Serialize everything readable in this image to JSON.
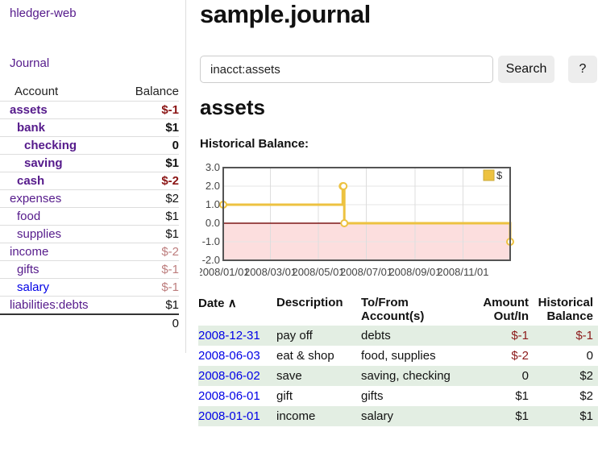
{
  "app": {
    "brand": "hledger-web"
  },
  "colors": {
    "accent_purple": "#551a8b",
    "link_blue": "#0000e6",
    "negative_strong": "#8b1515",
    "negative_soft": "#bd7d7d",
    "negative_table": "#8b1a1a",
    "row_green": "#e3eee3",
    "chart_gold": "#edc240",
    "chart_negative_fill": "#fcdede",
    "chart_zero_line": "#7d1616",
    "button_bg": "#ededed"
  },
  "sidebar": {
    "nav_journal": "Journal",
    "headers": {
      "account": "Account",
      "balance": "Balance"
    },
    "accounts": [
      {
        "label": "assets",
        "indent": 0,
        "bold": true,
        "balance": "$-1"
      },
      {
        "label": "bank",
        "indent": 1,
        "bold": true,
        "balance": "$1"
      },
      {
        "label": "checking",
        "indent": 2,
        "bold": true,
        "balance": "0"
      },
      {
        "label": "saving",
        "indent": 2,
        "bold": true,
        "balance": "$1"
      },
      {
        "label": "cash",
        "indent": 1,
        "bold": true,
        "balance": "$-2"
      },
      {
        "label": "expenses",
        "indent": 0,
        "bold": false,
        "balance": "$2"
      },
      {
        "label": "food",
        "indent": 1,
        "bold": false,
        "balance": "$1"
      },
      {
        "label": "supplies",
        "indent": 1,
        "bold": false,
        "balance": "$1"
      },
      {
        "label": "income",
        "indent": 0,
        "bold": false,
        "balance": "$-2"
      },
      {
        "label": "gifts",
        "indent": 1,
        "bold": false,
        "balance": "$-1"
      },
      {
        "label": "salary",
        "indent": 1,
        "bold": false,
        "balance": "$-1",
        "link": "blue"
      },
      {
        "label": "liabilities:debts",
        "indent": 0,
        "bold": false,
        "balance": "$1"
      }
    ],
    "total": "0"
  },
  "main": {
    "title": "sample.journal",
    "search": {
      "value": "inacct:assets",
      "clear_icon": "×",
      "button_label": "Search",
      "help_label": "?"
    },
    "account_heading": "assets",
    "chart_label": "Historical Balance:"
  },
  "chart_data": {
    "type": "line",
    "step": true,
    "title": "Historical Balance:",
    "legend": [
      {
        "label": "$",
        "color": "#edc240"
      }
    ],
    "legend_position": "top-right",
    "grid": true,
    "x_range": [
      "2008-01-01",
      "2008-12-31"
    ],
    "ylim": [
      -2.0,
      3.0
    ],
    "y_ticks": [
      "3.0",
      "2.0",
      "1.0",
      "0.0",
      "-1.0",
      "-2.0"
    ],
    "x_ticks": [
      "2008/01/01",
      "2008/03/01",
      "2008/05/01",
      "2008/07/01",
      "2008/09/01",
      "2008/11/01"
    ],
    "series": [
      {
        "name": "$",
        "color": "#edc240",
        "points": [
          {
            "x": "2008-01-01",
            "y": 1
          },
          {
            "x": "2008-06-01",
            "y": 2
          },
          {
            "x": "2008-06-02",
            "y": 2
          },
          {
            "x": "2008-06-03",
            "y": 0
          },
          {
            "x": "2008-12-31",
            "y": -1
          }
        ]
      }
    ],
    "negative_region_shaded": true
  },
  "register": {
    "sort_icon": "∧",
    "headers": {
      "date": "Date",
      "description": "Description",
      "account_line1": "To/From",
      "account_line2": "Account(s)",
      "amount_line1": "Amount",
      "amount_line2": "Out/In",
      "hist_line1": "Historical",
      "hist_line2": "Balance"
    },
    "rows": [
      {
        "date": "2008-12-31",
        "description": "pay off",
        "accounts": "debts",
        "amount": "$-1",
        "historical": "$-1"
      },
      {
        "date": "2008-06-03",
        "description": "eat & shop",
        "accounts": "food, supplies",
        "amount": "$-2",
        "historical": "0"
      },
      {
        "date": "2008-06-02",
        "description": "save",
        "accounts": "saving, checking",
        "amount": "0",
        "historical": "$2"
      },
      {
        "date": "2008-06-01",
        "description": "gift",
        "accounts": "gifts",
        "amount": "$1",
        "historical": "$2"
      },
      {
        "date": "2008-01-01",
        "description": "income",
        "accounts": "salary",
        "amount": "$1",
        "historical": "$1"
      }
    ]
  }
}
